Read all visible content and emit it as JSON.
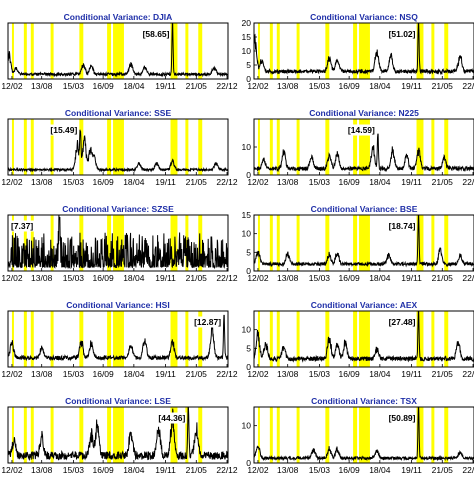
{
  "colors": {
    "title": "#1f2fa8",
    "line": "#000000",
    "band": "#ffff00",
    "frame": "#000000",
    "background": "#ffffff"
  },
  "x_tick_labels": [
    "12/02",
    "13/08",
    "15/03",
    "16/09",
    "18/04",
    "19/11",
    "21/05",
    "22/12"
  ],
  "bands": [
    [
      2012.1,
      2012.2
    ],
    [
      2012.7,
      2012.85
    ],
    [
      2013.05,
      2013.2
    ],
    [
      2014.05,
      2014.2
    ],
    [
      2015.5,
      2015.7
    ],
    [
      2016.9,
      2017.1
    ],
    [
      2017.2,
      2017.75
    ],
    [
      2020.1,
      2020.45
    ],
    [
      2020.85,
      2021.0
    ],
    [
      2021.5,
      2021.7
    ]
  ],
  "chart_data": [
    {
      "type": "line",
      "title": "Conditional Variance: DJIA",
      "xlim": [
        2011.9,
        2023.0
      ],
      "ylim": [
        0,
        20
      ],
      "yticks": [],
      "annotation": "[58.65]",
      "peak_x": 2020.2,
      "peak_y": 20,
      "base": 1.2,
      "noise": 1.0,
      "spikes": [
        [
          2011.95,
          9
        ],
        [
          2012.3,
          2.5
        ],
        [
          2015.7,
          4.5
        ],
        [
          2016.1,
          3.5
        ],
        [
          2018.1,
          4.8
        ],
        [
          2018.8,
          3.2
        ],
        [
          2022.3,
          3
        ]
      ]
    },
    {
      "type": "line",
      "title": "Conditional Variance: NSQ",
      "xlim": [
        2011.9,
        2023.0
      ],
      "ylim": [
        0,
        20
      ],
      "yticks": [
        0,
        5,
        10,
        15,
        20
      ],
      "annotation": "[51.02]",
      "peak_x": 2020.2,
      "peak_y": 20,
      "base": 2.0,
      "noise": 1.4,
      "spikes": [
        [
          2011.95,
          13
        ],
        [
          2012.3,
          5
        ],
        [
          2015.7,
          6
        ],
        [
          2016.1,
          5
        ],
        [
          2018.1,
          9
        ],
        [
          2018.8,
          7
        ],
        [
          2022.3,
          7
        ]
      ]
    },
    {
      "type": "line",
      "title": "Conditional Variance: SSE",
      "xlim": [
        2011.9,
        2023.0
      ],
      "ylim": [
        0,
        20
      ],
      "yticks": [],
      "annotation": "[15.49]",
      "peak_x": 2015.55,
      "peak_y": 15.5,
      "base": 1.5,
      "noise": 0.8,
      "spikes": [
        [
          2015.4,
          11
        ],
        [
          2015.75,
          13
        ],
        [
          2016.05,
          8
        ],
        [
          2016.25,
          5
        ],
        [
          2018.5,
          3
        ],
        [
          2019.4,
          3
        ],
        [
          2020.2,
          4
        ],
        [
          2022.4,
          3
        ]
      ]
    },
    {
      "type": "line",
      "title": "Conditional Variance: N225",
      "xlim": [
        2011.9,
        2023.0
      ],
      "ylim": [
        0,
        20
      ],
      "yticks": [
        0,
        10
      ],
      "annotation": "[14.59]",
      "peak_x": 2018.15,
      "peak_y": 14.6,
      "base": 1.6,
      "noise": 1.4,
      "spikes": [
        [
          2012.4,
          4
        ],
        [
          2013.4,
          7
        ],
        [
          2014.8,
          5
        ],
        [
          2015.7,
          6
        ],
        [
          2016.1,
          7
        ],
        [
          2017.9,
          9
        ],
        [
          2018.9,
          8
        ],
        [
          2019.6,
          6
        ],
        [
          2020.2,
          8
        ],
        [
          2021.5,
          5
        ]
      ]
    },
    {
      "type": "line",
      "title": "Conditional Variance: SZSE",
      "xlim": [
        2011.9,
        2023.0
      ],
      "ylim": [
        0,
        8
      ],
      "yticks": [],
      "annotation": "[7.37]",
      "peak_x": 2014.5,
      "peak_y": 7.4,
      "base": 0.5,
      "noise": 5.0,
      "spikes": []
    },
    {
      "type": "line",
      "title": "Conditional Variance: BSE",
      "xlim": [
        2011.9,
        2023.0
      ],
      "ylim": [
        0,
        15
      ],
      "yticks": [
        0,
        5,
        10,
        15
      ],
      "annotation": "[18.74]",
      "peak_x": 2020.2,
      "peak_y": 15,
      "base": 1.4,
      "noise": 0.9,
      "spikes": [
        [
          2012.1,
          4
        ],
        [
          2013.6,
          3.5
        ],
        [
          2015.7,
          3
        ],
        [
          2016.1,
          4
        ],
        [
          2018.7,
          3
        ],
        [
          2021.3,
          5
        ],
        [
          2022.3,
          3
        ]
      ]
    },
    {
      "type": "line",
      "title": "Conditional Variance: HSI",
      "xlim": [
        2011.9,
        2023.0
      ],
      "ylim": [
        0,
        14
      ],
      "yticks": [],
      "annotation": "[12.87]",
      "peak_x": 2022.8,
      "peak_y": 12.9,
      "base": 1.8,
      "noise": 1.0,
      "spikes": [
        [
          2012.1,
          5
        ],
        [
          2013.6,
          3
        ],
        [
          2015.6,
          5
        ],
        [
          2016.1,
          4.5
        ],
        [
          2018.1,
          4
        ],
        [
          2018.8,
          5.5
        ],
        [
          2020.2,
          5
        ],
        [
          2022.2,
          9
        ]
      ]
    },
    {
      "type": "line",
      "title": "Conditional Variance: AEX",
      "xlim": [
        2011.9,
        2023.0
      ],
      "ylim": [
        0,
        15
      ],
      "yticks": [
        0,
        5,
        10
      ],
      "annotation": "[27.48]",
      "peak_x": 2020.2,
      "peak_y": 15,
      "base": 1.6,
      "noise": 1.2,
      "spikes": [
        [
          2012.1,
          8
        ],
        [
          2012.5,
          5
        ],
        [
          2013.4,
          4
        ],
        [
          2015.7,
          7
        ],
        [
          2016.1,
          5
        ],
        [
          2016.5,
          5
        ],
        [
          2018.1,
          3
        ],
        [
          2022.2,
          6
        ]
      ]
    },
    {
      "type": "line",
      "title": "Conditional Variance: LSE",
      "xlim": [
        2011.9,
        2023.0
      ],
      "ylim": [
        0,
        15
      ],
      "yticks": [],
      "annotation": "[44.36]",
      "peak_x": 2021.0,
      "peak_y": 15,
      "base": 0.9,
      "noise": 2.2,
      "spikes": [
        [
          2012.2,
          5
        ],
        [
          2013.6,
          6
        ],
        [
          2016.1,
          7
        ],
        [
          2016.4,
          10
        ],
        [
          2018.1,
          8
        ],
        [
          2019.5,
          9
        ],
        [
          2020.2,
          13
        ],
        [
          2021.4,
          9
        ]
      ]
    },
    {
      "type": "line",
      "title": "Conditional Variance: TSX",
      "xlim": [
        2011.9,
        2023.0
      ],
      "ylim": [
        0,
        15
      ],
      "yticks": [
        0,
        10
      ],
      "annotation": "[50.89]",
      "peak_x": 2020.2,
      "peak_y": 15,
      "base": 0.9,
      "noise": 0.8,
      "spikes": [
        [
          2012.1,
          4
        ],
        [
          2014.9,
          3
        ],
        [
          2015.7,
          3
        ],
        [
          2016.1,
          3
        ],
        [
          2018.1,
          2.5
        ],
        [
          2022.3,
          2
        ]
      ]
    }
  ]
}
